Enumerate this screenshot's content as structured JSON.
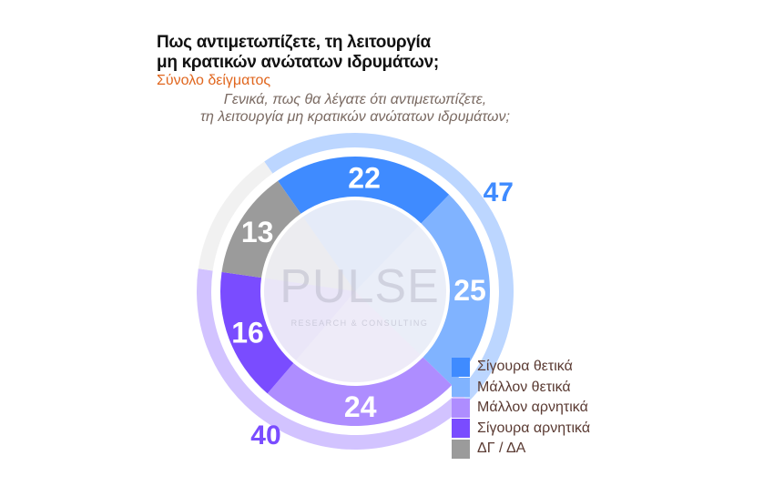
{
  "title_lines": [
    "Πως αντιμετωπίζετε, τη λειτουργία",
    "μη κρατικών ανώτατων ιδρυμάτων;"
  ],
  "subtitle": "Σύνολο δείγματος",
  "question_lines": [
    "Γενικά, πως θα λέγατε ότι αντιμετωπίζετε,",
    "τη λειτουργία μη κρατικών ανώτατων ιδρυμάτων;"
  ],
  "watermark": "PULSE RESEARCH & CONSULTING",
  "chart_data": {
    "type": "pie",
    "categories": [
      "Σίγουρα θετικά",
      "Μάλλον θετικά",
      "Μάλλον αρνητικά",
      "Σίγουρα αρνητικά",
      "ΔΓ / ΔΑ"
    ],
    "values": [
      22,
      25,
      24,
      16,
      13
    ],
    "colors": [
      "#3f8bff",
      "#80b3ff",
      "#ae8dff",
      "#7a4cff",
      "#9b9b9b"
    ],
    "totals": [
      {
        "label": "47",
        "value": 47,
        "color": "#3f8bff",
        "ring_color": "#bcd6ff"
      },
      {
        "label": "40",
        "value": 40,
        "color": "#7a4cff",
        "ring_color": "#d2c3ff"
      },
      {
        "value": 13,
        "ring_color": "#f1f1f1"
      }
    ],
    "legend_position": "bottom-right"
  }
}
